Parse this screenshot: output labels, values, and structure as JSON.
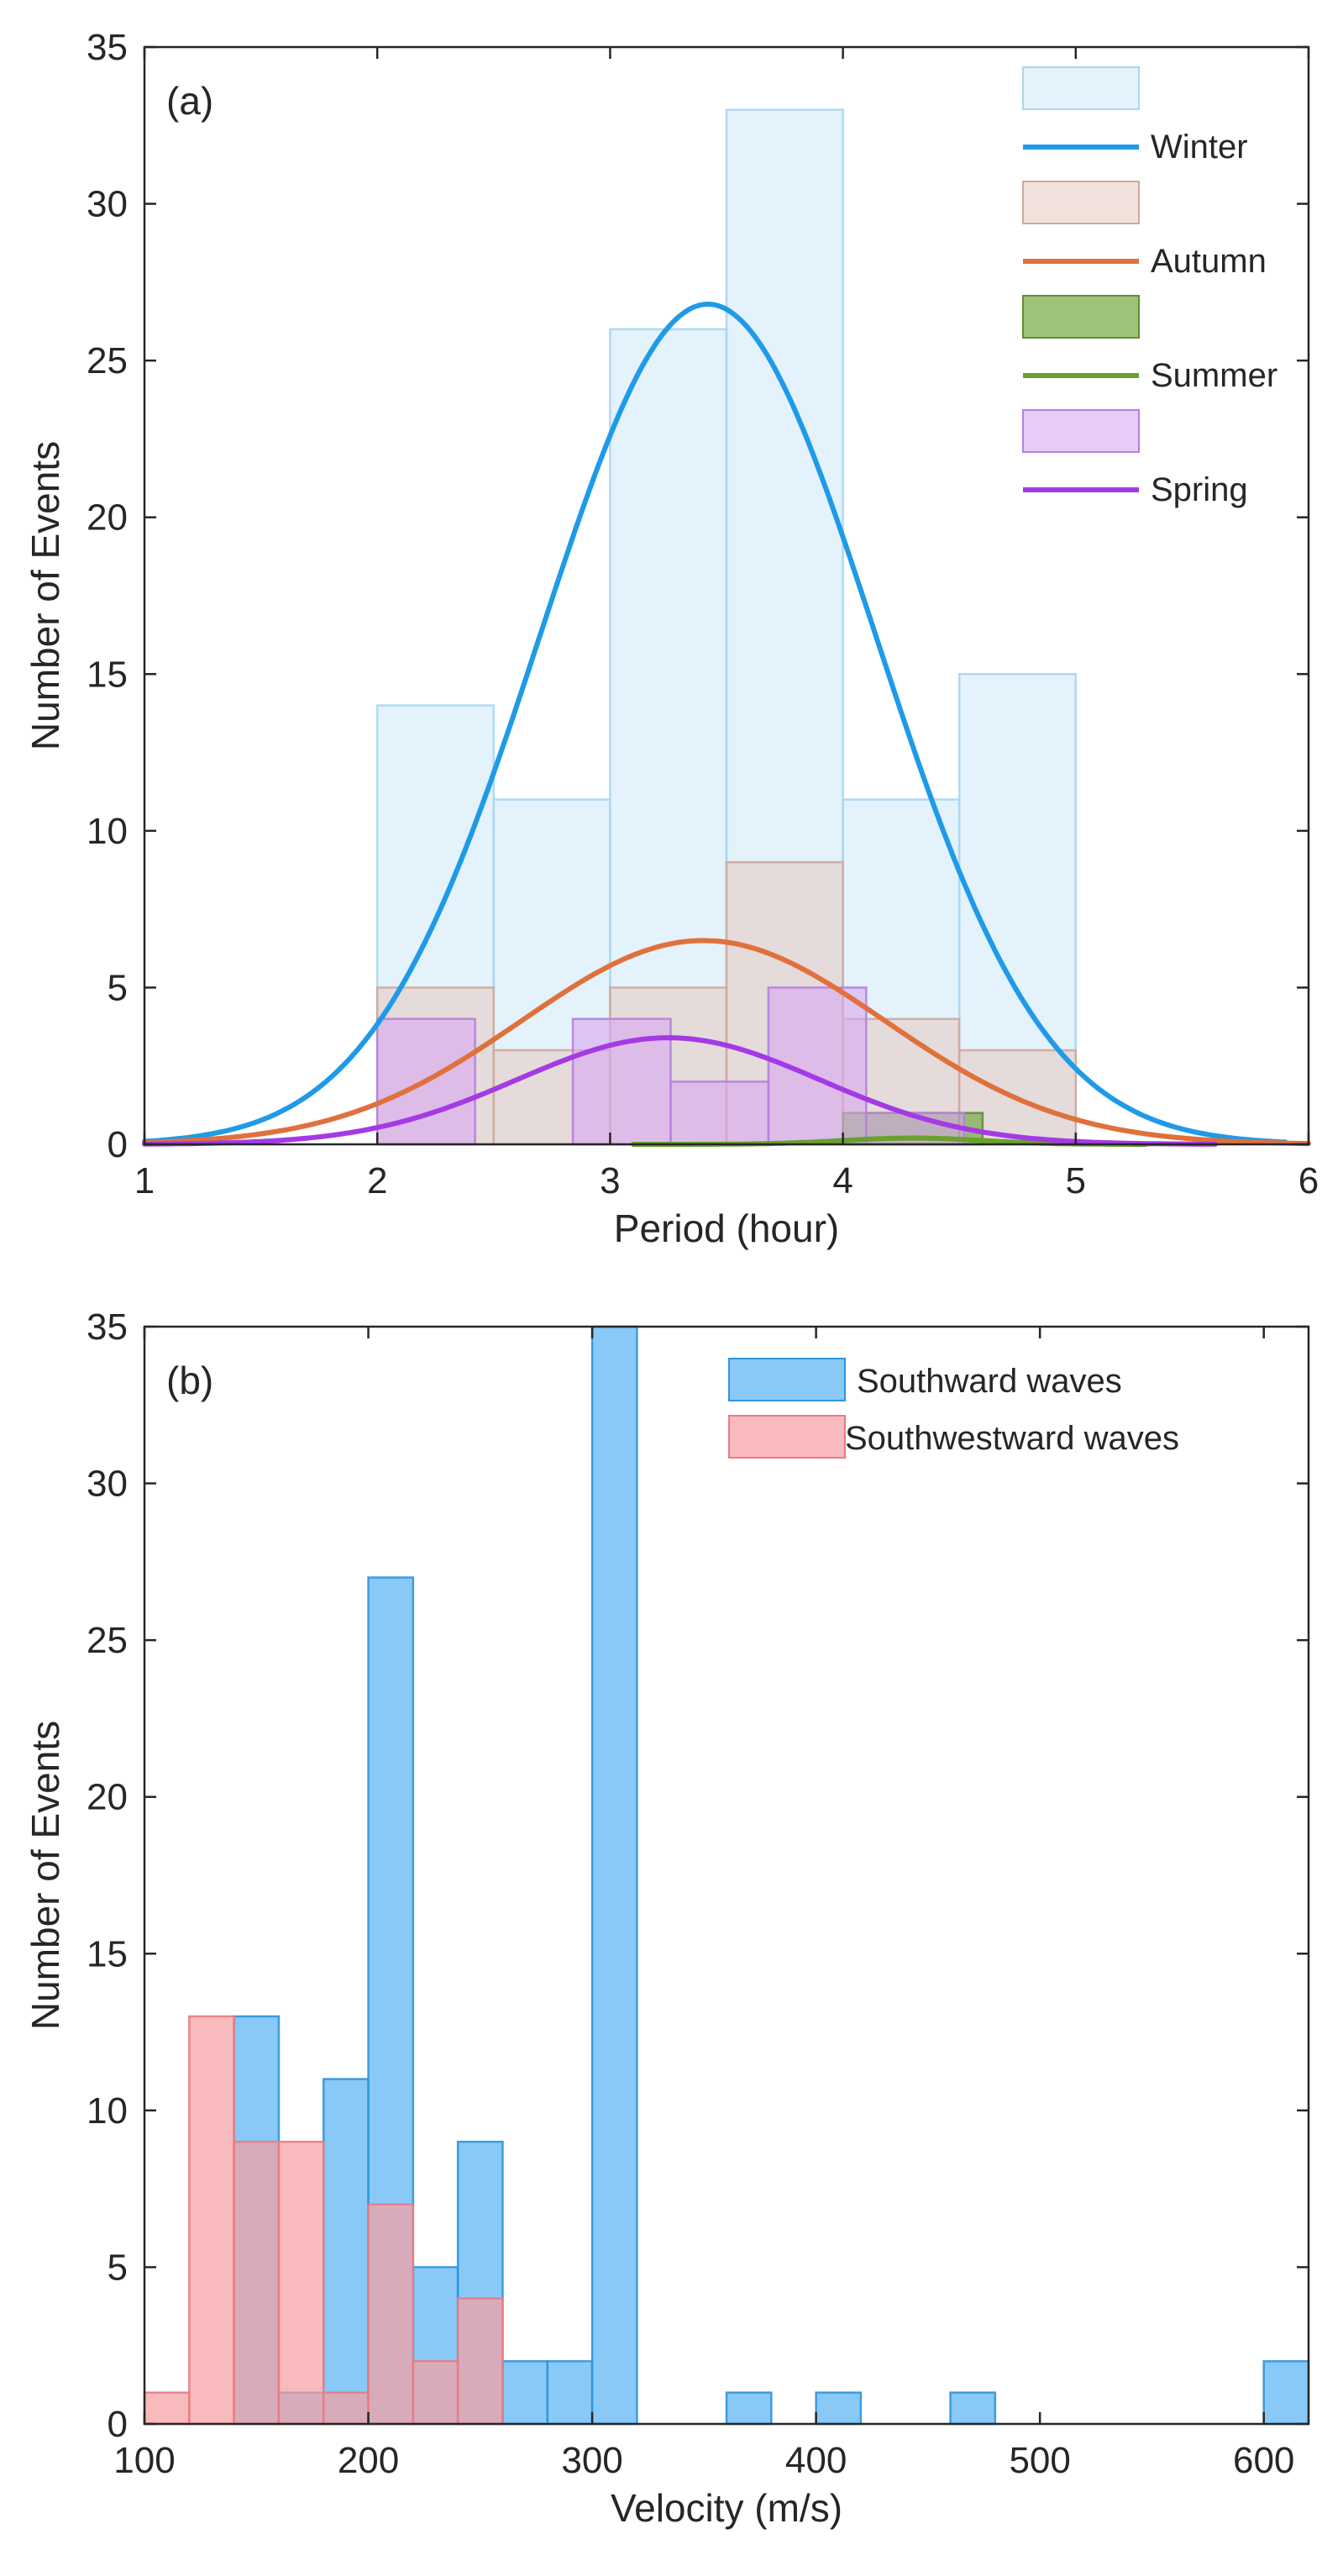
{
  "chart_data": [
    {
      "type": "bar",
      "panel_label": "(a)",
      "xlabel": "Period (hour)",
      "ylabel": "Number of Events",
      "xlim": [
        1,
        6
      ],
      "ylim": [
        0,
        35
      ],
      "xticks": [
        1,
        2,
        3,
        4,
        5,
        6
      ],
      "yticks": [
        0,
        5,
        10,
        15,
        20,
        25,
        30,
        35
      ],
      "grid": false,
      "legend_position": "top-right",
      "series": [
        {
          "name": "Winter",
          "bar_color": "#daeef9",
          "bar_edge": "#a7d6f2",
          "bar_opacity": 0.75,
          "line_color": "#1f9ae8",
          "bins": [
            {
              "x0": 2.0,
              "x1": 2.5,
              "count": 14
            },
            {
              "x0": 2.5,
              "x1": 3.0,
              "count": 11
            },
            {
              "x0": 3.0,
              "x1": 3.5,
              "count": 26
            },
            {
              "x0": 3.5,
              "x1": 4.0,
              "count": 33
            },
            {
              "x0": 4.0,
              "x1": 4.5,
              "count": 11
            },
            {
              "x0": 4.5,
              "x1": 5.0,
              "count": 15
            }
          ],
          "fit": {
            "mean": 3.42,
            "sd": 0.72,
            "peak": 26.8,
            "x_range": [
              1.0,
              5.9
            ]
          }
        },
        {
          "name": "Autumn",
          "bar_color": "#e6c9bf",
          "bar_edge": "#cfa89a",
          "bar_opacity": 0.55,
          "line_color": "#e0703c",
          "bins": [
            {
              "x0": 2.0,
              "x1": 2.5,
              "count": 5
            },
            {
              "x0": 2.5,
              "x1": 3.0,
              "count": 3
            },
            {
              "x0": 3.0,
              "x1": 3.5,
              "count": 5
            },
            {
              "x0": 3.5,
              "x1": 4.0,
              "count": 9
            },
            {
              "x0": 4.0,
              "x1": 4.5,
              "count": 4
            },
            {
              "x0": 4.5,
              "x1": 5.0,
              "count": 3
            }
          ],
          "fit": {
            "mean": 3.4,
            "sd": 0.78,
            "peak": 6.5,
            "x_range": [
              1.0,
              6.0
            ]
          }
        },
        {
          "name": "Summer",
          "bar_color": "#7fae4f",
          "bar_edge": "#5f8f33",
          "bar_opacity": 0.75,
          "line_color": "#6aa02e",
          "bins": [
            {
              "x0": 4.0,
              "x1": 4.5,
              "count": 1
            },
            {
              "x0": 4.5,
              "x1": 4.6,
              "count": 1
            }
          ],
          "fit": {
            "mean": 4.3,
            "sd": 0.3,
            "peak": 0.2,
            "x_range": [
              3.1,
              5.3
            ]
          }
        },
        {
          "name": "Spring",
          "bar_color": "#d9a8f0",
          "bar_edge": "#b77ee0",
          "bar_opacity": 0.6,
          "line_color": "#a43ae6",
          "bins": [
            {
              "x0": 2.0,
              "x1": 2.42,
              "count": 4
            },
            {
              "x0": 2.84,
              "x1": 3.26,
              "count": 4
            },
            {
              "x0": 3.26,
              "x1": 3.68,
              "count": 2
            },
            {
              "x0": 3.68,
              "x1": 4.1,
              "count": 5
            },
            {
              "x0": 4.1,
              "x1": 4.52,
              "count": 1
            }
          ],
          "fit": {
            "mean": 3.25,
            "sd": 0.65,
            "peak": 3.4,
            "x_range": [
              1.0,
              5.6
            ]
          }
        }
      ]
    },
    {
      "type": "bar",
      "panel_label": "(b)",
      "xlabel": "Velocity (m/s)",
      "ylabel": "Number of Events",
      "xlim": [
        100,
        620
      ],
      "ylim": [
        0,
        35
      ],
      "xticks": [
        100,
        200,
        300,
        400,
        500,
        600
      ],
      "yticks": [
        0,
        5,
        10,
        15,
        20,
        25,
        30,
        35
      ],
      "grid": false,
      "legend_position": "top-right",
      "series": [
        {
          "name": "Southward waves",
          "bar_color": "#5ab4f5",
          "bar_edge": "#2f94de",
          "bar_opacity": 0.72,
          "bins": [
            {
              "x0": 140,
              "x1": 160,
              "count": 13
            },
            {
              "x0": 160,
              "x1": 180,
              "count": 1
            },
            {
              "x0": 180,
              "x1": 200,
              "count": 11
            },
            {
              "x0": 200,
              "x1": 220,
              "count": 27
            },
            {
              "x0": 220,
              "x1": 240,
              "count": 5
            },
            {
              "x0": 240,
              "x1": 260,
              "count": 9
            },
            {
              "x0": 260,
              "x1": 280,
              "count": 2
            },
            {
              "x0": 280,
              "x1": 300,
              "count": 2
            },
            {
              "x0": 300,
              "x1": 320,
              "count": 35
            },
            {
              "x0": 360,
              "x1": 380,
              "count": 1
            },
            {
              "x0": 400,
              "x1": 420,
              "count": 1
            },
            {
              "x0": 460,
              "x1": 480,
              "count": 1
            },
            {
              "x0": 600,
              "x1": 620,
              "count": 2
            }
          ]
        },
        {
          "name": "Southwestward waves",
          "bar_color": "#f7a0a3",
          "bar_edge": "#ea7b80",
          "bar_opacity": 0.72,
          "bins": [
            {
              "x0": 100,
              "x1": 120,
              "count": 1
            },
            {
              "x0": 120,
              "x1": 140,
              "count": 13
            },
            {
              "x0": 140,
              "x1": 160,
              "count": 9
            },
            {
              "x0": 160,
              "x1": 180,
              "count": 9
            },
            {
              "x0": 180,
              "x1": 200,
              "count": 1
            },
            {
              "x0": 200,
              "x1": 220,
              "count": 7
            },
            {
              "x0": 220,
              "x1": 240,
              "count": 2
            },
            {
              "x0": 240,
              "x1": 260,
              "count": 4
            }
          ]
        }
      ]
    }
  ]
}
